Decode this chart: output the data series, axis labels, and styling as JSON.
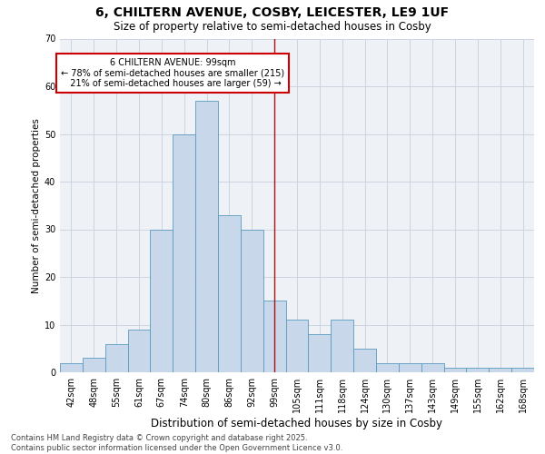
{
  "title1": "6, CHILTERN AVENUE, COSBY, LEICESTER, LE9 1UF",
  "title2": "Size of property relative to semi-detached houses in Cosby",
  "xlabel": "Distribution of semi-detached houses by size in Cosby",
  "ylabel": "Number of semi-detached properties",
  "categories": [
    "42sqm",
    "48sqm",
    "55sqm",
    "61sqm",
    "67sqm",
    "74sqm",
    "80sqm",
    "86sqm",
    "92sqm",
    "99sqm",
    "105sqm",
    "111sqm",
    "118sqm",
    "124sqm",
    "130sqm",
    "137sqm",
    "143sqm",
    "149sqm",
    "155sqm",
    "162sqm",
    "168sqm"
  ],
  "values": [
    2,
    3,
    6,
    9,
    30,
    50,
    57,
    33,
    30,
    15,
    11,
    8,
    11,
    5,
    2,
    2,
    2,
    1,
    1,
    1,
    1
  ],
  "bar_color": "#c8d8ea",
  "bar_edge_color": "#5a9abf",
  "ylim": [
    0,
    70
  ],
  "yticks": [
    0,
    10,
    20,
    30,
    40,
    50,
    60,
    70
  ],
  "property_label": "6 CHILTERN AVENUE: 99sqm",
  "pct_smaller": 78,
  "pct_larger": 21,
  "n_smaller": 215,
  "n_larger": 59,
  "vline_color": "#aa1111",
  "annotation_box_color": "#cc0000",
  "bg_color": "#eef2f7",
  "footer1": "Contains HM Land Registry data © Crown copyright and database right 2025.",
  "footer2": "Contains public sector information licensed under the Open Government Licence v3.0.",
  "grid_color": "#c8d0dc",
  "title1_fontsize": 10,
  "title2_fontsize": 8.5,
  "xlabel_fontsize": 8.5,
  "ylabel_fontsize": 7.5,
  "tick_fontsize": 7,
  "footer_fontsize": 6,
  "annot_fontsize": 7
}
